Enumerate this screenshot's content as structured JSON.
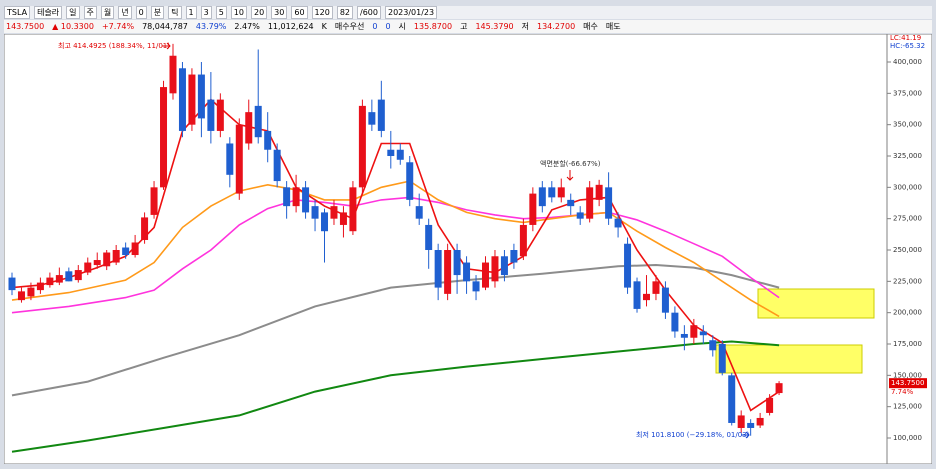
{
  "toolbar": [
    "TSLA",
    "테슬라",
    "일",
    "주",
    "월",
    "년",
    "0",
    "분",
    "틱",
    "1",
    "3",
    "5",
    "10",
    "20",
    "30",
    "60",
    "120",
    "82",
    "/600",
    "2023/01/23"
  ],
  "quote": [
    {
      "text": "143.7500",
      "color": "#e00000"
    },
    {
      "text": "▲ 10.3300",
      "color": "#e00000"
    },
    {
      "text": "+7.74%",
      "color": "#e00000"
    },
    {
      "text": "78,044,787",
      "color": "#000000"
    },
    {
      "text": "43.79%",
      "color": "#1040d0"
    },
    {
      "text": "2.47%",
      "color": "#000000"
    },
    {
      "text": "11,012,624",
      "color": "#000000"
    },
    {
      "text": "K",
      "color": "#000000"
    },
    {
      "text": "매수우선",
      "color": "#000000"
    },
    {
      "text": "0",
      "color": "#1040d0"
    },
    {
      "text": "0",
      "color": "#1040d0"
    },
    {
      "text": "시",
      "color": "#000000"
    },
    {
      "text": "135.8700",
      "color": "#e00000"
    },
    {
      "text": "고",
      "color": "#000000"
    },
    {
      "text": "145.3790",
      "color": "#e00000"
    },
    {
      "text": "저",
      "color": "#000000"
    },
    {
      "text": "134.2700",
      "color": "#e00000"
    },
    {
      "text": "매수",
      "color": "#000000"
    },
    {
      "text": "매도",
      "color": "#000000"
    }
  ],
  "chart_data": {
    "type": "candlestick",
    "up_color": "#e8101a",
    "down_color": "#1f5fd0",
    "open": [
      228000,
      210000,
      213000,
      218000,
      222000,
      224000,
      233000,
      226000,
      232000,
      238000,
      237000,
      240000,
      252000,
      246000,
      258000,
      278000,
      300000,
      375000,
      395000,
      350000,
      390000,
      370000,
      345000,
      335000,
      295000,
      335000,
      365000,
      345000,
      330000,
      300000,
      285000,
      300000,
      285000,
      280000,
      275000,
      270000,
      265000,
      300000,
      360000,
      370000,
      330000,
      330000,
      320000,
      285000,
      270000,
      250000,
      215000,
      250000,
      240000,
      225000,
      220000,
      225000,
      245000,
      250000,
      245000,
      270000,
      300000,
      300000,
      292000,
      290000,
      280000,
      275000,
      290000,
      300000,
      275000,
      255000,
      225000,
      210000,
      215000,
      220000,
      200000,
      183000,
      180000,
      185000,
      178000,
      175000,
      150000,
      108000,
      112000,
      110000,
      120000,
      135870
    ],
    "high": [
      232000,
      220000,
      224000,
      228000,
      232000,
      236000,
      236000,
      238000,
      244000,
      248000,
      250000,
      254000,
      256000,
      262000,
      280000,
      305000,
      385000,
      414492.5,
      400000,
      395000,
      400000,
      392000,
      375000,
      340000,
      355000,
      370000,
      410000,
      360000,
      335000,
      305000,
      310000,
      305000,
      290000,
      283000,
      290000,
      285000,
      305000,
      370000,
      370000,
      385000,
      345000,
      335000,
      325000,
      295000,
      275000,
      255000,
      255000,
      255000,
      245000,
      230000,
      245000,
      250000,
      250000,
      255000,
      275000,
      300000,
      305000,
      305000,
      307000,
      295000,
      285000,
      305000,
      306000,
      312000,
      280000,
      260000,
      228000,
      230000,
      230000,
      225000,
      205000,
      190000,
      195000,
      190000,
      182000,
      178000,
      152000,
      122000,
      115000,
      120000,
      135000,
      145379
    ],
    "low": [
      214000,
      208000,
      210000,
      215000,
      220000,
      222000,
      225000,
      224000,
      230000,
      235000,
      234000,
      238000,
      243000,
      244000,
      255000,
      275000,
      298000,
      370000,
      340000,
      345000,
      340000,
      335000,
      340000,
      300000,
      290000,
      330000,
      335000,
      320000,
      300000,
      275000,
      280000,
      275000,
      265000,
      240000,
      270000,
      260000,
      262000,
      295000,
      345000,
      340000,
      315000,
      318000,
      285000,
      270000,
      235000,
      210000,
      210000,
      215000,
      215000,
      210000,
      218000,
      220000,
      225000,
      235000,
      242000,
      265000,
      280000,
      288000,
      288000,
      278000,
      270000,
      272000,
      285000,
      270000,
      260000,
      215000,
      200000,
      205000,
      210000,
      195000,
      180000,
      170000,
      175000,
      175000,
      165000,
      150000,
      110000,
      104000,
      101810,
      108000,
      118000,
      134270
    ],
    "close": [
      218000,
      217000,
      220000,
      224000,
      228000,
      230000,
      225000,
      234000,
      240000,
      242000,
      248000,
      250000,
      246000,
      256000,
      276000,
      300000,
      380000,
      405000,
      345000,
      390000,
      355000,
      345000,
      370000,
      310000,
      350000,
      360000,
      340000,
      330000,
      305000,
      285000,
      300000,
      280000,
      275000,
      265000,
      285000,
      280000,
      300000,
      365000,
      350000,
      345000,
      325000,
      322000,
      290000,
      275000,
      250000,
      220000,
      250000,
      230000,
      225000,
      217000,
      240000,
      245000,
      230000,
      240000,
      270000,
      295000,
      285000,
      292000,
      300000,
      285000,
      275000,
      300000,
      302000,
      275000,
      268000,
      220000,
      203000,
      215000,
      225000,
      200000,
      185000,
      180000,
      190000,
      182000,
      170000,
      152000,
      112000,
      118000,
      108000,
      116000,
      132000,
      143750
    ],
    "series": [
      {
        "color": "#8c8c8c",
        "x": [
          0,
          8,
          16,
          24,
          32,
          40,
          48,
          56,
          64,
          68,
          72,
          76,
          81
        ],
        "values": [
          134000,
          145000,
          164000,
          182000,
          205000,
          220000,
          226000,
          231000,
          237000,
          238000,
          236000,
          230000,
          220000
        ]
      },
      {
        "color": "#118811",
        "x": [
          0,
          8,
          16,
          24,
          32,
          40,
          48,
          56,
          64,
          72,
          76,
          81
        ],
        "values": [
          89000,
          98000,
          108000,
          118000,
          137000,
          150000,
          157000,
          163000,
          169000,
          175000,
          177000,
          174000
        ]
      },
      {
        "color": "#ff33dd",
        "x": [
          0,
          6,
          12,
          15,
          18,
          21,
          24,
          27,
          30,
          33,
          36,
          39,
          42,
          45,
          48,
          51,
          54,
          57,
          60,
          63,
          66,
          69,
          72,
          75,
          78,
          81
        ],
        "values": [
          200000,
          205000,
          212000,
          218000,
          235000,
          250000,
          270000,
          283000,
          290000,
          288000,
          285000,
          290000,
          292000,
          288000,
          282000,
          278000,
          275000,
          276000,
          278000,
          280000,
          274000,
          265000,
          255000,
          245000,
          228000,
          212000
        ]
      },
      {
        "color": "#ff9a1a",
        "x": [
          0,
          6,
          12,
          15,
          18,
          21,
          24,
          27,
          30,
          33,
          36,
          39,
          42,
          45,
          48,
          51,
          54,
          57,
          60,
          63,
          66,
          69,
          72,
          75,
          78,
          81
        ],
        "values": [
          210000,
          216000,
          226000,
          240000,
          268000,
          285000,
          297000,
          302000,
          298000,
          290000,
          290000,
          300000,
          305000,
          290000,
          280000,
          275000,
          272000,
          275000,
          278000,
          280000,
          265000,
          252000,
          240000,
          225000,
          210000,
          197000
        ]
      },
      {
        "color": "#ee1111",
        "x": [
          0,
          3,
          6,
          9,
          12,
          15,
          18,
          21,
          24,
          27,
          30,
          33,
          36,
          39,
          42,
          45,
          48,
          51,
          54,
          57,
          60,
          63,
          66,
          69,
          72,
          75,
          78,
          81
        ],
        "values": [
          220000,
          222000,
          228000,
          236000,
          245000,
          268000,
          345000,
          370000,
          350000,
          345000,
          300000,
          285000,
          275000,
          335000,
          335000,
          270000,
          235000,
          232000,
          245000,
          282000,
          290000,
          292000,
          250000,
          218000,
          190000,
          176000,
          122000,
          137000
        ]
      }
    ],
    "ylim": [
      82450,
      421550
    ],
    "yticks": [
      {
        "value": 100000,
        "label": "100,000"
      },
      {
        "value": 125000,
        "label": "125,000"
      },
      {
        "value": 150000,
        "label": "150,000"
      },
      {
        "value": 175000,
        "label": "175,000"
      },
      {
        "value": 200000,
        "label": "200,000"
      },
      {
        "value": 225000,
        "label": "225,000"
      },
      {
        "value": 250000,
        "label": "250,000"
      },
      {
        "value": 275000,
        "label": "275,000"
      },
      {
        "value": 300000,
        "label": "300,000"
      },
      {
        "value": 325000,
        "label": "325,000"
      },
      {
        "value": 350000,
        "label": "350,000"
      },
      {
        "value": 375000,
        "label": "375,000"
      },
      {
        "value": 400000,
        "label": "400,000"
      }
    ],
    "annotations": {
      "high": "최고 414.4925 (188.34%, 11/01)",
      "low": "최저 101.8100 (−29.18%, 01/03)",
      "split": "액면분할(-66.67%)",
      "lc": "LC:41.19",
      "hc": "HC:-65.32",
      "last": "143.7500",
      "last_change": "7.74%"
    }
  }
}
